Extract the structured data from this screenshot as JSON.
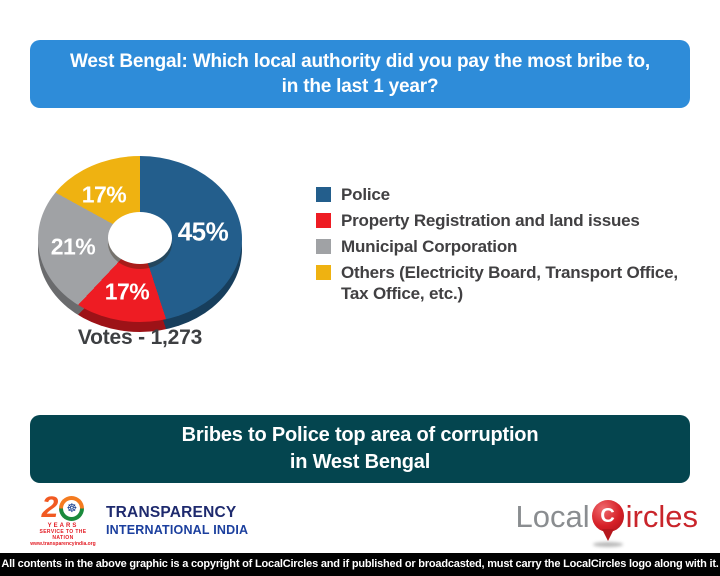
{
  "header": {
    "line1": "West Bengal: Which local authority did you pay the most bribe to,",
    "line2": "in the last 1 year?",
    "bg": "#2e8cd9"
  },
  "chart_data": {
    "type": "pie",
    "donut": true,
    "title": "West Bengal: Which local authority did you pay the most bribe to, in the last 1 year?",
    "categories": [
      "Police",
      "Property Registration and land issues",
      "Municipal Corporation",
      "Others (Electricity Board, Transport Office, Tax Office, etc.)"
    ],
    "values": [
      45,
      17,
      21,
      17
    ],
    "unit": "percent",
    "labels": [
      "45%",
      "17%",
      "21%",
      "17%"
    ],
    "colors": [
      "#235e8c",
      "#ee1c23",
      "#a0a2a5",
      "#efb211"
    ],
    "start_angle_deg": 0,
    "direction": "clockwise",
    "legend_position": "right",
    "votes_label": "Votes - 1,273",
    "total_votes": "1,273"
  },
  "callout": {
    "line1": "Bribes to Police top area of corruption",
    "line2": "in West Bengal",
    "bg": "#04454f"
  },
  "footer": {
    "tii": {
      "two": "2",
      "chakra": "☸",
      "years": "YEARS",
      "service": "SERVICE TO THE NATION",
      "website": "www.transparencyindia.org",
      "name_line1": "TRANSPARENCY",
      "name_line2": "INTERNATIONAL INDIA",
      "accent_red": "#e31b23",
      "navy": "#1e2a6e",
      "blue": "#1b3f9e"
    },
    "localcircles": {
      "part1": "Local",
      "pin_letter": "C",
      "part2": "ircles",
      "red": "#c9252b",
      "gray": "#8a8d90"
    },
    "copyright": "All contents in the above graphic is a copyright of LocalCircles and if published or broadcasted, must carry the LocalCircles logo along with it."
  }
}
